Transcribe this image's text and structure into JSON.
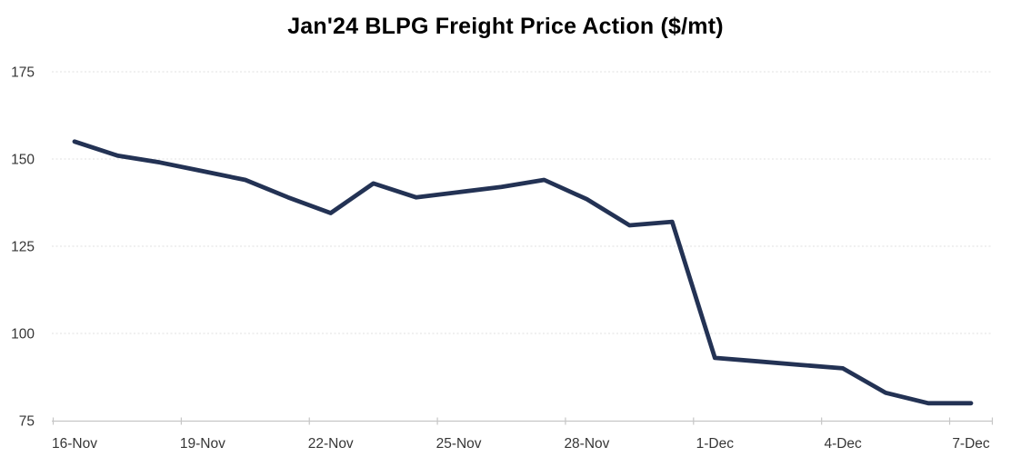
{
  "chart_data": {
    "type": "line",
    "title": "Jan'24 BLPG Freight Price Action ($/mt)",
    "x": [
      "16-Nov",
      "17-Nov",
      "18-Nov",
      "19-Nov",
      "20-Nov",
      "21-Nov",
      "22-Nov",
      "23-Nov",
      "24-Nov",
      "25-Nov",
      "26-Nov",
      "27-Nov",
      "28-Nov",
      "29-Nov",
      "30-Nov",
      "1-Dec",
      "2-Dec",
      "3-Dec",
      "4-Dec",
      "5-Dec",
      "6-Dec",
      "7-Dec"
    ],
    "values": [
      155,
      151,
      149,
      146.5,
      144,
      139,
      134.5,
      143,
      139,
      140.5,
      142,
      144,
      138.5,
      131,
      132,
      93,
      92,
      91,
      90,
      83,
      80,
      80
    ],
    "x_tick_labels": [
      "16-Nov",
      "19-Nov",
      "22-Nov",
      "25-Nov",
      "28-Nov",
      "1-Dec",
      "4-Dec",
      "7-Dec"
    ],
    "y_ticks": [
      75,
      100,
      125,
      150,
      175
    ],
    "ylim": [
      75,
      175
    ],
    "xlabel": "",
    "ylabel": "",
    "grid": "horizontal-dotted",
    "legend": "none"
  },
  "colors": {
    "line": "#233254",
    "gridline": "#E0E0E0",
    "axis_line": "#C6C6C6",
    "tick_mark": "#C6C6C6",
    "tick_label": "#363636",
    "title": "#000000",
    "background": "#FFFFFF"
  }
}
